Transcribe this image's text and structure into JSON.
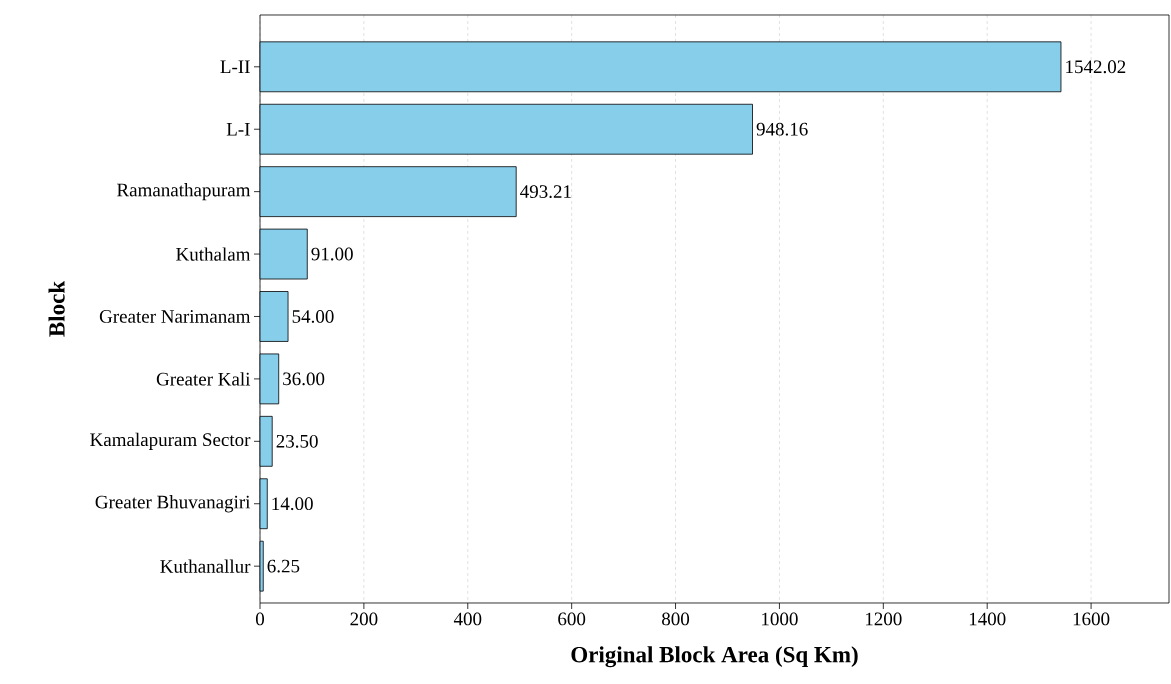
{
  "chart_data": {
    "type": "bar",
    "orientation": "horizontal",
    "xlabel": "Original Block Area (Sq Km)",
    "ylabel": "Block",
    "categories": [
      "L-II",
      "L-I",
      "Ramanathapuram",
      "Kuthalam",
      "Greater Narimanam",
      "Greater Kali",
      "Kamalapuram Sector",
      "Greater Bhuvanagiri",
      "Kuthanallur"
    ],
    "values": [
      1542.02,
      948.16,
      493.21,
      91.0,
      54.0,
      36.0,
      23.5,
      14.0,
      6.25
    ],
    "value_labels": [
      "1542.02",
      "948.16",
      "493.21",
      "91.00",
      "54.00",
      "36.00",
      "23.50",
      "14.00",
      "6.25"
    ],
    "color": "#87ceeb",
    "xlim": [
      0,
      1750
    ],
    "xticks": [
      0,
      200,
      400,
      600,
      800,
      1000,
      1200,
      1400,
      1600
    ],
    "grid": "x"
  }
}
